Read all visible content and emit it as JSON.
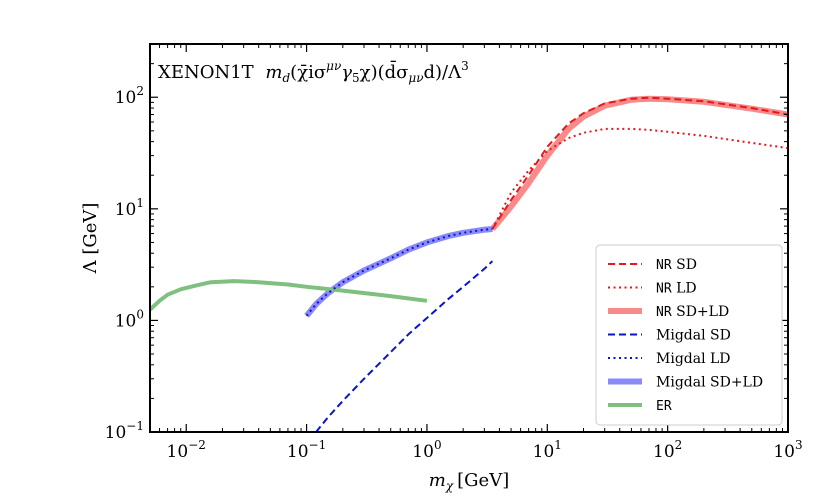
{
  "chart_data": {
    "type": "line",
    "title": "XENON1T m_d(χ̄iσ^{μν}γ₅χ)(d̄σ_{μν}d)/Λ³",
    "title_parts": {
      "experiment": "XENON1T",
      "m": "m",
      "m_sub": "d",
      "op1": "(χ̄iσ",
      "op1_sup": "μν",
      "op2": "γ",
      "op2_sub": "5",
      "op3": "χ)(d̄σ",
      "op3_sub": "μν",
      "op4": "d)/Λ",
      "op4_sup": "3"
    },
    "xlabel": "m_χ [GeV]",
    "xlabel_parts": {
      "sym": "m",
      "sub": "χ",
      "unit": "[GeV]"
    },
    "ylabel": "Λ [GeV]",
    "xscale": "log",
    "yscale": "log",
    "xlim": [
      0.005,
      1000
    ],
    "ylim": [
      0.1,
      300
    ],
    "x_ticks": [
      {
        "value": 0.01,
        "base": "10",
        "exp": "−2"
      },
      {
        "value": 0.1,
        "base": "10",
        "exp": "−1"
      },
      {
        "value": 1,
        "base": "10",
        "exp": "0"
      },
      {
        "value": 10,
        "base": "10",
        "exp": "1"
      },
      {
        "value": 100,
        "base": "10",
        "exp": "2"
      },
      {
        "value": 1000,
        "base": "10",
        "exp": "3"
      }
    ],
    "y_ticks": [
      {
        "value": 0.1,
        "base": "10",
        "exp": "−1"
      },
      {
        "value": 1,
        "base": "10",
        "exp": "0"
      },
      {
        "value": 10,
        "base": "10",
        "exp": "1"
      },
      {
        "value": 100,
        "base": "10",
        "exp": "2"
      }
    ],
    "legend_position": "lower-right",
    "series": [
      {
        "name": "NR SD",
        "prefix": "NR",
        "suffix": " SD",
        "color": "#e31a1c",
        "style": "dashed",
        "width": 2,
        "x": [
          3.5,
          5,
          7,
          10,
          15,
          20,
          30,
          50,
          70,
          100,
          200,
          500,
          1000
        ],
        "y": [
          6.6,
          12,
          20,
          36,
          58,
          72,
          88,
          97,
          99,
          97,
          92,
          80,
          70
        ]
      },
      {
        "name": "NR LD",
        "prefix": "NR",
        "suffix": " LD",
        "color": "#e31a1c",
        "style": "dotted",
        "width": 2,
        "x": [
          3.5,
          5,
          7,
          10,
          15,
          20,
          30,
          50,
          70,
          100,
          200,
          500,
          1000
        ],
        "y": [
          6.6,
          14,
          22,
          33,
          43,
          48,
          52,
          52,
          51,
          49,
          45,
          39,
          35
        ]
      },
      {
        "name": "NR SD+LD",
        "prefix": "NR",
        "suffix": " SD+LD",
        "color": "#f88a8a",
        "style": "solid",
        "width": 6,
        "x": [
          3.5,
          5,
          7,
          10,
          15,
          20,
          30,
          50,
          70,
          100,
          200,
          500,
          1000
        ],
        "y": [
          6.6,
          10.5,
          17,
          30,
          52,
          67,
          84,
          95,
          97,
          96,
          91,
          79,
          70
        ]
      },
      {
        "name": "Migdal SD",
        "prefix": "",
        "suffix": "Migdal SD",
        "color": "#0a14c8",
        "style": "dashed",
        "width": 2,
        "x": [
          0.12,
          0.15,
          0.2,
          0.3,
          0.5,
          0.7,
          1,
          1.5,
          2,
          3,
          3.5
        ],
        "y": [
          0.1,
          0.135,
          0.19,
          0.3,
          0.52,
          0.75,
          1.05,
          1.55,
          2.0,
          2.9,
          3.4
        ]
      },
      {
        "name": "Migdal LD",
        "prefix": "",
        "suffix": "Migdal LD",
        "color": "#0a14c8",
        "style": "dotted",
        "width": 2,
        "x": [
          0.1,
          0.12,
          0.15,
          0.2,
          0.3,
          0.5,
          0.7,
          1,
          1.5,
          2,
          3,
          3.5
        ],
        "y": [
          1.1,
          1.4,
          1.75,
          2.2,
          2.8,
          3.6,
          4.3,
          5.0,
          5.7,
          6.1,
          6.5,
          6.6
        ]
      },
      {
        "name": "Migdal SD+LD",
        "prefix": "",
        "suffix": "Migdal SD+LD",
        "color": "#8a8afa",
        "style": "solid",
        "width": 6,
        "x": [
          0.1,
          0.12,
          0.15,
          0.2,
          0.3,
          0.5,
          0.7,
          1,
          1.5,
          2,
          3,
          3.5
        ],
        "y": [
          1.1,
          1.4,
          1.75,
          2.2,
          2.8,
          3.6,
          4.3,
          5.0,
          5.7,
          6.1,
          6.5,
          6.6
        ]
      },
      {
        "name": "ER",
        "prefix": "ER",
        "suffix": "",
        "color": "#7fbf7f",
        "style": "solid",
        "width": 4,
        "x": [
          0.005,
          0.006,
          0.007,
          0.009,
          0.012,
          0.016,
          0.025,
          0.04,
          0.07,
          0.1,
          0.2,
          0.5,
          1.0
        ],
        "y": [
          1.25,
          1.5,
          1.7,
          1.9,
          2.05,
          2.2,
          2.25,
          2.2,
          2.1,
          2.0,
          1.85,
          1.65,
          1.5
        ]
      }
    ]
  }
}
